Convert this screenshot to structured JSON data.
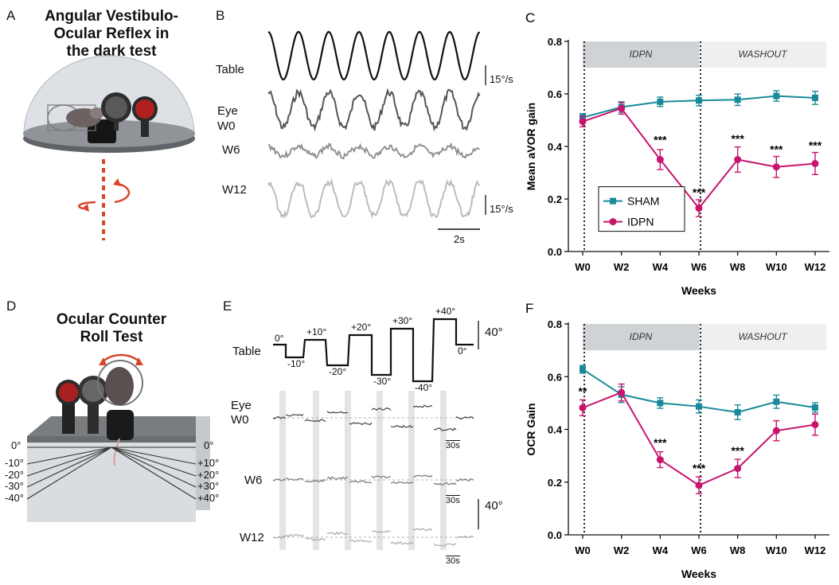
{
  "panels": {
    "a": {
      "letter": "A",
      "title_lines": [
        "Angular Vestibulo-",
        "Ocular Reflex in",
        "the dark test"
      ]
    },
    "b": {
      "letter": "B",
      "row_labels": [
        "Table",
        "Eye",
        "W0",
        "W6",
        "W12"
      ],
      "scale_labels": [
        "15°/s",
        "15°/s"
      ],
      "time_scale": "2s"
    },
    "d": {
      "letter": "D",
      "title_lines": [
        "Ocular Counter",
        "Roll Test"
      ],
      "left_angles": [
        "0°",
        "-10°",
        "-20°",
        "-30°",
        "-40°"
      ],
      "right_angles": [
        "0°",
        "+10°",
        "+20°",
        "+30°",
        "+40°"
      ]
    },
    "e": {
      "letter": "E",
      "table_label": "Table",
      "step_labels": [
        "0°",
        "-10°",
        "+10°",
        "-20°",
        "+20°",
        "-30°",
        "+30°",
        "-40°",
        "+40°",
        "0°"
      ],
      "scale_top": "40°",
      "scale_bottom": "40°",
      "eye_label": "Eye",
      "row_labels": [
        "W0",
        "W6",
        "W12"
      ],
      "time_scale": "30s"
    }
  },
  "chart_data": [
    {
      "panel_letter": "C",
      "type": "line",
      "ylabel": "Mean aVOR gain",
      "xlabel": "Weeks",
      "categories": [
        "W0",
        "W2",
        "W4",
        "W6",
        "W8",
        "W10",
        "W12"
      ],
      "ylim": [
        0,
        0.8
      ],
      "yticks": [
        "0.0",
        "0.2",
        "0.4",
        "0.6",
        "0.8"
      ],
      "phases": [
        {
          "label": "IDPN",
          "from": "W0",
          "to": "W6"
        },
        {
          "label": "WASHOUT",
          "from": "W6",
          "to": "W12"
        }
      ],
      "legend": {
        "placement": "bottom-left"
      },
      "series": [
        {
          "name": "SHAM",
          "color": "#1a8a9a",
          "marker": "square",
          "values": [
            0.51,
            0.55,
            0.57,
            0.575,
            0.578,
            0.592,
            0.585
          ],
          "err": [
            0.015,
            0.02,
            0.018,
            0.02,
            0.022,
            0.02,
            0.025
          ]
        },
        {
          "name": "IDPN",
          "color": "#c8146e",
          "marker": "circle",
          "values": [
            0.495,
            0.545,
            0.35,
            0.165,
            0.35,
            0.322,
            0.335
          ],
          "err": [
            0.02,
            0.022,
            0.038,
            0.032,
            0.048,
            0.04,
            0.042
          ]
        }
      ],
      "annotations": [
        {
          "x": "W4",
          "y": 0.41,
          "text": "***"
        },
        {
          "x": "W6",
          "y": 0.21,
          "text": "***"
        },
        {
          "x": "W8",
          "y": 0.415,
          "text": "***"
        },
        {
          "x": "W10",
          "y": 0.375,
          "text": "***"
        },
        {
          "x": "W12",
          "y": 0.39,
          "text": "***"
        }
      ]
    },
    {
      "panel_letter": "F",
      "type": "line",
      "ylabel": "OCR Gain",
      "xlabel": "Weeks",
      "categories": [
        "W0",
        "W2",
        "W4",
        "W6",
        "W8",
        "W10",
        "W12"
      ],
      "ylim": [
        0,
        0.8
      ],
      "yticks": [
        "0.0",
        "0.2",
        "0.4",
        "0.6",
        "0.8"
      ],
      "phases": [
        {
          "label": "IDPN",
          "from": "W0",
          "to": "W6"
        },
        {
          "label": "WASHOUT",
          "from": "W6",
          "to": "W12"
        }
      ],
      "series": [
        {
          "name": "SHAM",
          "color": "#1a8a9a",
          "marker": "square",
          "values": [
            0.628,
            0.532,
            0.5,
            0.487,
            0.465,
            0.505,
            0.483
          ],
          "err": [
            0.015,
            0.03,
            0.02,
            0.025,
            0.028,
            0.025,
            0.018
          ]
        },
        {
          "name": "IDPN",
          "color": "#c8146e",
          "marker": "circle",
          "values": [
            0.482,
            0.54,
            0.285,
            0.188,
            0.252,
            0.395,
            0.418
          ],
          "err": [
            0.03,
            0.032,
            0.03,
            0.032,
            0.035,
            0.038,
            0.04
          ]
        }
      ],
      "annotations": [
        {
          "x": "W0",
          "y": 0.53,
          "text": "**"
        },
        {
          "x": "W4",
          "y": 0.335,
          "text": "***"
        },
        {
          "x": "W6",
          "y": 0.238,
          "text": "***"
        },
        {
          "x": "W8",
          "y": 0.305,
          "text": "***"
        }
      ]
    }
  ]
}
